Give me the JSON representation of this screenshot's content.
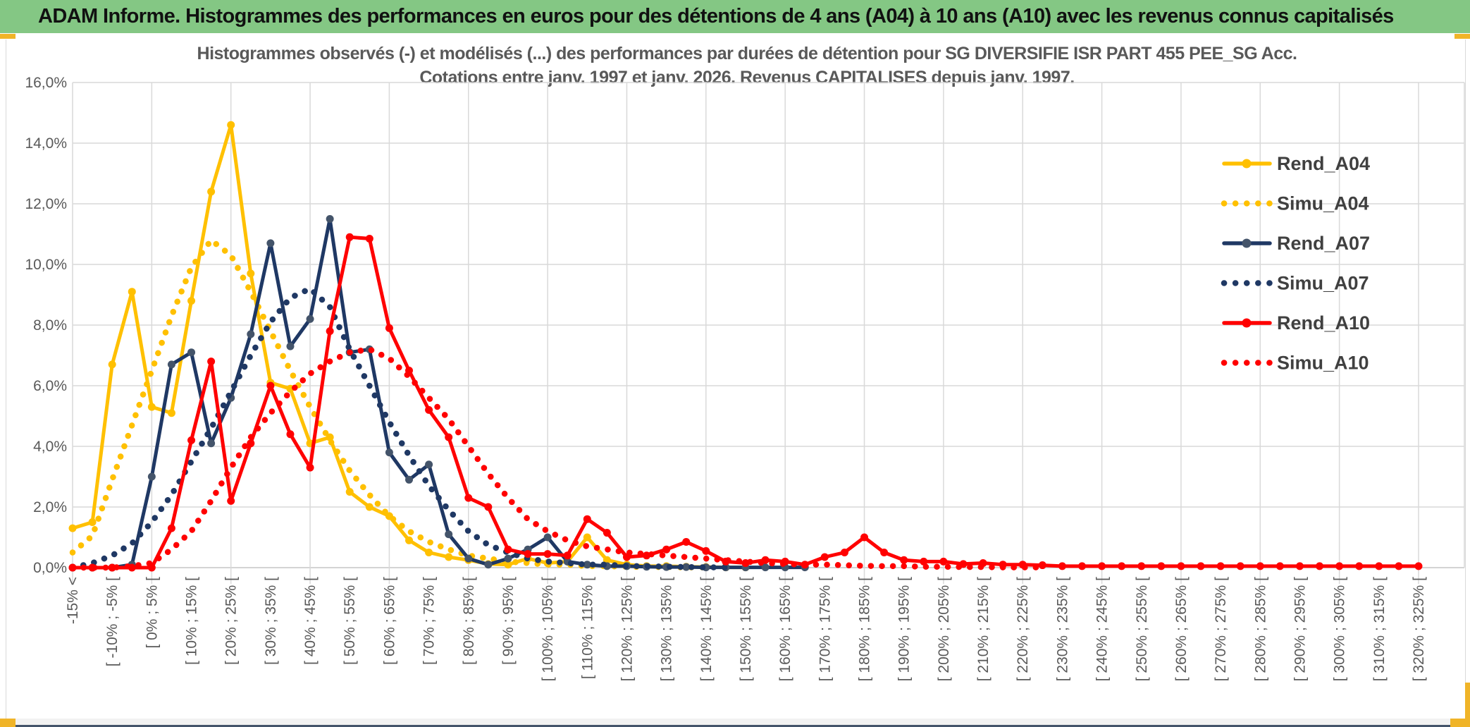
{
  "banner": {
    "title": "ADAM Informe. Histogrammes des performances en euros pour des détentions de 4 ans (A04) à 10 ans (A10) avec les revenus connus capitalisés"
  },
  "chart_data": {
    "type": "line",
    "title": "Histogrammes observés (-) et modélisés (...) des performances par durées de détention pour SG DIVERSIFIE ISR PART 455 PEE_SG Acc.",
    "subtitle": "Cotations entre janv. 1997 et janv. 2026. Revenus CAPITALISES depuis janv. 1997.",
    "ylim": [
      0,
      16
    ],
    "ytick_labels": [
      "0,0%",
      "2,0%",
      "4,0%",
      "6,0%",
      "8,0%",
      "10,0%",
      "12,0%",
      "14,0%",
      "16,0%"
    ],
    "grid": true,
    "legend_position": "right-top",
    "bins_per_label": 2,
    "x_labels": [
      "-15% <",
      "[ -10% ; -5% [",
      "[ 0% ; 5% [",
      "[ 10% ; 15% [",
      "[ 20% ; 25% [",
      "[ 30% ; 35% [",
      "[ 40% ; 45% [",
      "[ 50% ; 55% [",
      "[ 60% ; 65% [",
      "[ 70% ; 75% [",
      "[ 80% ; 85% [",
      "[ 90% ; 95% [",
      "[ 100% ; 105% [",
      "[ 110% ; 115% [",
      "[ 120% ; 125% [",
      "[ 130% ; 135% [",
      "[ 140% ; 145% [",
      "[ 150% ; 155% [",
      "[ 160% ; 165% [",
      "[ 170% ; 175% [",
      "[ 180% ; 185% [",
      "[ 190% ; 195% [",
      "[ 200% ; 205% [",
      "[ 210% ; 215% [",
      "[ 220% ; 225% [",
      "[ 230% ; 235% [",
      "[ 240% ; 245% [",
      "[ 250% ; 255% [",
      "[ 260% ; 265% [",
      "[ 270% ; 275% [",
      "[ 280% ; 285% [",
      "[ 290% ; 295% [",
      "[ 300% ; 305% [",
      "[ 310% ; 315% [",
      "[ 320% ; 325% ["
    ],
    "series": [
      {
        "name": "Rend_A04",
        "color": "#FFC000",
        "marker_color": "#FFC000",
        "style": "solid",
        "values": [
          1.3,
          1.5,
          6.7,
          9.1,
          5.3,
          5.1,
          8.8,
          12.4,
          14.6,
          9.7,
          6.1,
          5.9,
          4.1,
          4.3,
          2.5,
          2.0,
          1.7,
          0.9,
          0.5,
          0.35,
          0.25,
          0.12,
          0.1,
          0.3,
          0.15,
          0.2,
          1.0,
          0.25,
          0.1,
          0.05,
          0.05,
          0.03,
          0.02,
          0.01,
          0.01,
          0,
          0,
          0,
          0,
          0,
          0,
          0,
          0,
          0,
          0,
          0,
          0,
          0,
          0,
          0,
          0,
          0,
          0,
          0,
          0,
          0,
          0,
          0,
          0,
          0,
          0,
          0,
          0,
          0,
          0,
          0,
          0,
          0,
          0
        ]
      },
      {
        "name": "Simu_A04",
        "color": "#FFC000",
        "style": "dotted",
        "values": [
          0.5,
          1.05,
          2.9,
          4.7,
          6.5,
          8.3,
          9.9,
          10.8,
          10.3,
          9.1,
          7.8,
          6.5,
          5.3,
          4.2,
          3.2,
          2.4,
          1.7,
          1.2,
          0.85,
          0.6,
          0.4,
          0.3,
          0.2,
          0.15,
          0.1,
          0.1,
          0.05,
          0.05,
          0.03,
          0.02,
          0.02,
          0.01,
          0.01,
          0,
          0,
          0,
          0,
          0,
          0,
          0,
          0,
          0,
          0,
          0,
          0,
          0,
          0,
          0,
          0,
          0,
          0,
          0,
          0,
          0,
          0,
          0,
          0,
          0,
          0,
          0,
          0,
          0,
          0,
          0,
          0,
          0,
          0,
          0,
          0
        ]
      },
      {
        "name": "Rend_A07",
        "color": "#1F3864",
        "marker_color": "#44546A",
        "style": "solid",
        "values": [
          0,
          0,
          0,
          0.1,
          3.0,
          6.7,
          7.1,
          4.1,
          5.6,
          7.7,
          10.7,
          7.3,
          8.2,
          11.5,
          7.1,
          7.2,
          3.8,
          2.9,
          3.4,
          1.1,
          0.3,
          0.1,
          0.3,
          0.6,
          1.0,
          0.2,
          0.1,
          0.05,
          0.05,
          0.03,
          0.02,
          0.02,
          0.01,
          0.01,
          0.01,
          0.01,
          0.01,
          0.01,
          0,
          0,
          0,
          0,
          0,
          0,
          0,
          0,
          0,
          0,
          0,
          0,
          0,
          0,
          0,
          0,
          0,
          0,
          0,
          0,
          0,
          0,
          0,
          0,
          0,
          0,
          0,
          0,
          0,
          0,
          0
        ]
      },
      {
        "name": "Simu_A07",
        "color": "#1F3864",
        "style": "dotted",
        "values": [
          0,
          0.15,
          0.4,
          0.8,
          1.5,
          2.4,
          3.5,
          4.6,
          5.8,
          7.0,
          8.1,
          8.9,
          9.2,
          8.6,
          7.2,
          6.0,
          4.8,
          3.7,
          2.7,
          1.9,
          1.2,
          0.75,
          0.5,
          0.3,
          0.2,
          0.15,
          0.1,
          0.1,
          0.05,
          0.05,
          0.03,
          0.02,
          0.01,
          0.01,
          0,
          0,
          0,
          0,
          0,
          0,
          0,
          0,
          0,
          0,
          0,
          0,
          0,
          0,
          0,
          0,
          0,
          0,
          0,
          0,
          0,
          0,
          0,
          0,
          0,
          0,
          0,
          0,
          0,
          0,
          0,
          0,
          0,
          0,
          0
        ]
      },
      {
        "name": "Rend_A10",
        "color": "#FF0000",
        "marker_color": "#FF0000",
        "style": "solid",
        "values": [
          0,
          0,
          0,
          0,
          0,
          1.3,
          4.2,
          6.8,
          2.2,
          4.1,
          6.0,
          4.4,
          3.3,
          7.8,
          10.9,
          10.85,
          7.9,
          6.5,
          5.2,
          4.3,
          2.3,
          2.0,
          0.6,
          0.45,
          0.45,
          0.4,
          1.6,
          1.15,
          0.35,
          0.4,
          0.6,
          0.85,
          0.55,
          0.2,
          0.15,
          0.25,
          0.2,
          0.1,
          0.35,
          0.5,
          1.0,
          0.5,
          0.25,
          0.2,
          0.2,
          0.12,
          0.15,
          0.1,
          0.1,
          0.08,
          0.05,
          0.05,
          0.05,
          0.05,
          0.05,
          0.05,
          0.05,
          0.05,
          0.05,
          0.05,
          0.05,
          0.05,
          0.05,
          0.05,
          0.05,
          0.05,
          0.05,
          0.05,
          0.05
        ]
      },
      {
        "name": "Simu_A10",
        "color": "#FF0000",
        "style": "dotted",
        "values": [
          0,
          0,
          0,
          0.05,
          0.15,
          0.6,
          1.2,
          2.2,
          3.3,
          4.3,
          5.1,
          5.8,
          6.4,
          6.8,
          7.1,
          7.2,
          6.9,
          6.3,
          5.6,
          4.9,
          4.0,
          3.1,
          2.3,
          1.6,
          1.2,
          0.9,
          0.7,
          0.6,
          0.5,
          0.45,
          0.4,
          0.35,
          0.3,
          0.25,
          0.2,
          0.15,
          0.12,
          0.1,
          0.1,
          0.08,
          0.06,
          0.05,
          0.05,
          0.03,
          0.03,
          0.02,
          0.02,
          0.01,
          0.01,
          0.01,
          0,
          0,
          0,
          0,
          0,
          0,
          0,
          0,
          0,
          0,
          0,
          0,
          0,
          0,
          0,
          0,
          0,
          0,
          0
        ]
      }
    ],
    "colors": {
      "grid": "#D9D9D9",
      "axis_line": "#C6C6C6",
      "axis_text": "#595959",
      "title_text": "#595959",
      "legend_text": "#404040",
      "banner_bg": "#84C784",
      "accent_gold": "#F0B428"
    }
  }
}
